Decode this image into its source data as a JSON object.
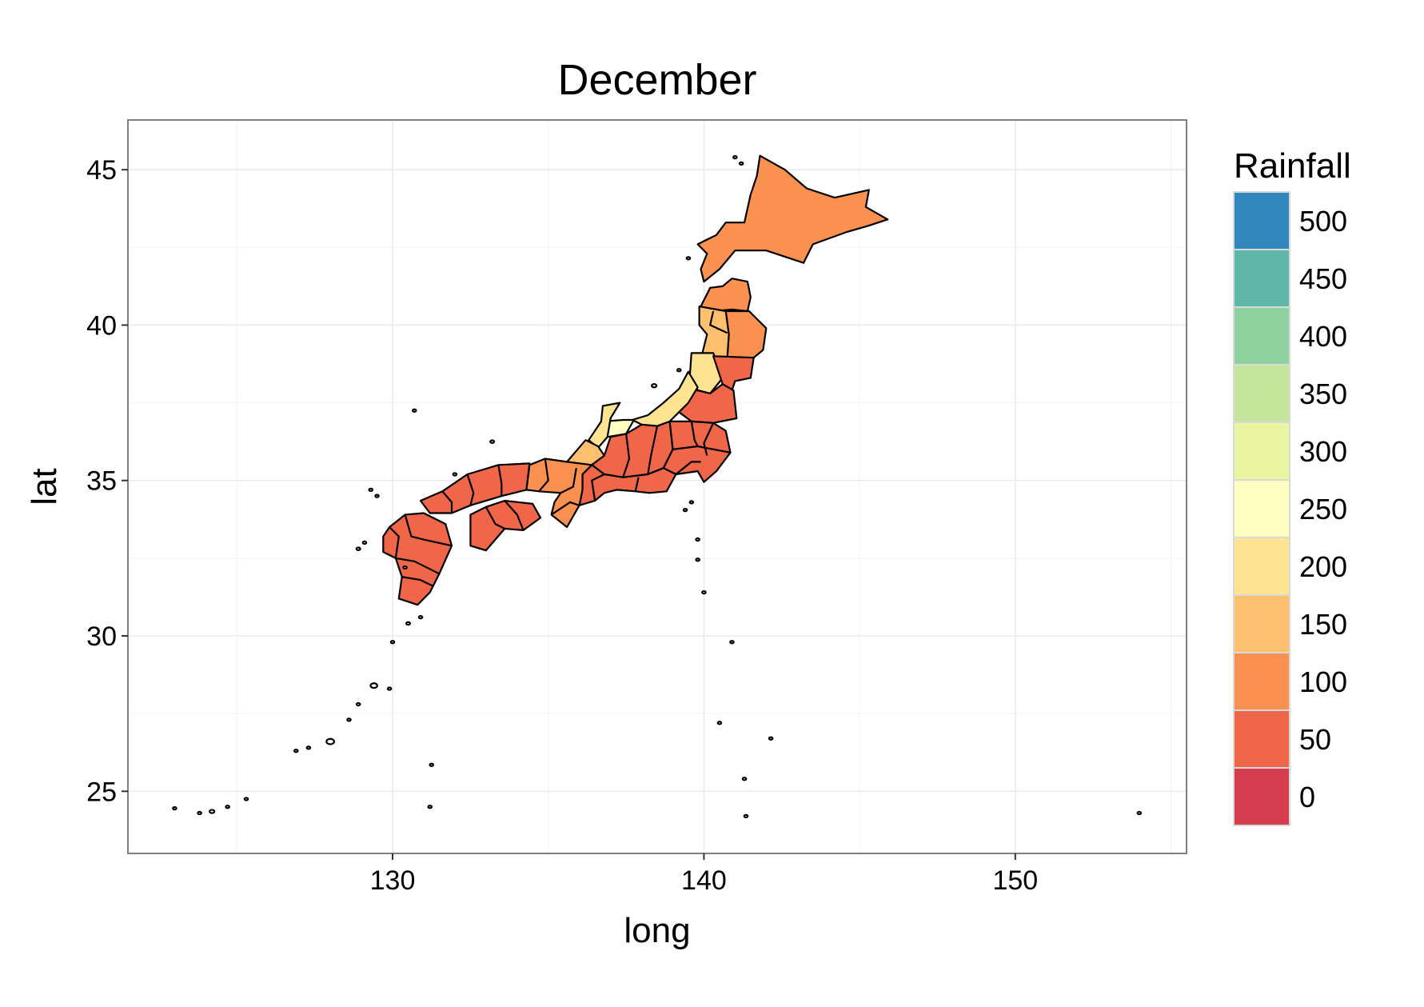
{
  "chart_data": {
    "type": "choropleth",
    "title": "December",
    "xlabel": "long",
    "ylabel": "lat",
    "xlim": [
      121.5,
      155.5
    ],
    "ylim": [
      23,
      46.6
    ],
    "x_ticks": [
      130,
      140,
      150
    ],
    "y_ticks": [
      25,
      30,
      35,
      40,
      45
    ],
    "grid": true,
    "legend": {
      "title": "Rainfall",
      "position": "right",
      "entries": [
        {
          "label": "500",
          "color": "#3288bd"
        },
        {
          "label": "450",
          "color": "#5fb7aa"
        },
        {
          "label": "400",
          "color": "#90d1a0"
        },
        {
          "label": "350",
          "color": "#c4e69b"
        },
        {
          "label": "300",
          "color": "#e9f5a0"
        },
        {
          "label": "250",
          "color": "#ffffc2"
        },
        {
          "label": "200",
          "color": "#fee391"
        },
        {
          "label": "150",
          "color": "#fec06e"
        },
        {
          "label": "100",
          "color": "#fb9151"
        },
        {
          "label": "50",
          "color": "#ef6648"
        },
        {
          "label": "0",
          "color": "#d53e4f"
        }
      ]
    },
    "regions": [
      {
        "region": "Hokkaido",
        "rainfall": 100
      },
      {
        "region": "Aomori",
        "rainfall": 100
      },
      {
        "region": "Iwate",
        "rainfall": 100
      },
      {
        "region": "Akita",
        "rainfall": 150
      },
      {
        "region": "Miyagi",
        "rainfall": 50
      },
      {
        "region": "Yamagata",
        "rainfall": 200
      },
      {
        "region": "Fukushima",
        "rainfall": 50
      },
      {
        "region": "Niigata",
        "rainfall": 200
      },
      {
        "region": "Toyama",
        "rainfall": 250
      },
      {
        "region": "Ishikawa",
        "rainfall": 200
      },
      {
        "region": "Fukui",
        "rainfall": 150
      },
      {
        "region": "Kanto",
        "rainfall": 50
      },
      {
        "region": "Chubu inland",
        "rainfall": 50
      },
      {
        "region": "Tokai",
        "rainfall": 50
      },
      {
        "region": "Kinki",
        "rainfall": 100
      },
      {
        "region": "Chugoku",
        "rainfall": 50
      },
      {
        "region": "Shikoku",
        "rainfall": 50
      },
      {
        "region": "Kyushu",
        "rainfall": 50
      }
    ]
  }
}
